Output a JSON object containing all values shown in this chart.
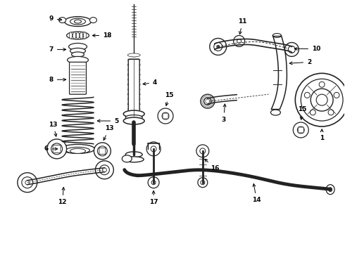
{
  "background_color": "#ffffff",
  "line_color": "#222222",
  "figure_width": 4.9,
  "figure_height": 3.6,
  "dpi": 100,
  "label_fontsize": 6.5,
  "label_fontweight": "bold",
  "arrow_lw": 0.7,
  "arrow_mutation_scale": 7
}
